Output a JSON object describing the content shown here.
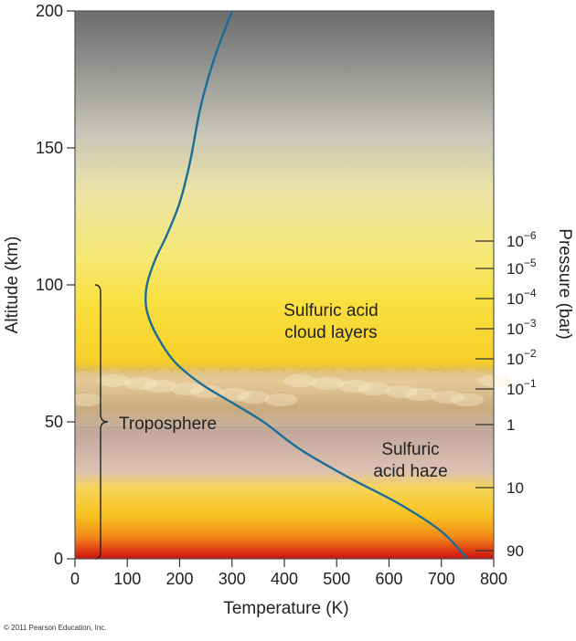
{
  "chart_data": {
    "type": "line",
    "xlabel": "Temperature (K)",
    "ylabel": "Altitude (km)",
    "y2label": "Pressure (bar)",
    "xlim": [
      0,
      800
    ],
    "ylim": [
      0,
      200
    ],
    "xticks": [
      "0",
      "100",
      "200",
      "300",
      "400",
      "500",
      "600",
      "700",
      "800"
    ],
    "yticks": [
      "0",
      "50",
      "100",
      "150",
      "200"
    ],
    "pressure_ticks": [
      {
        "altitude": 3,
        "base": "90",
        "exp": ""
      },
      {
        "altitude": 26,
        "base": "10",
        "exp": ""
      },
      {
        "altitude": 49,
        "base": "1",
        "exp": ""
      },
      {
        "altitude": 62,
        "base": "10",
        "exp": "−1"
      },
      {
        "altitude": 73,
        "base": "10",
        "exp": "−2"
      },
      {
        "altitude": 84,
        "base": "10",
        "exp": "−3"
      },
      {
        "altitude": 95,
        "base": "10",
        "exp": "−4"
      },
      {
        "altitude": 106,
        "base": "10",
        "exp": "−5"
      },
      {
        "altitude": 116,
        "base": "10",
        "exp": "−6"
      }
    ],
    "series": [
      {
        "color": "#1a6e96",
        "x": [
          750,
          700,
          620,
          520,
          430,
          360,
          300,
          240,
          190,
          155,
          138,
          135,
          140,
          155,
          175,
          200,
          220,
          240,
          265,
          290,
          300
        ],
        "y": [
          0,
          10,
          20,
          30,
          40,
          50,
          57,
          64,
          72,
          82,
          90,
          96,
          102,
          110,
          118,
          130,
          145,
          165,
          182,
          195,
          200
        ]
      }
    ],
    "annotations": [
      {
        "id": "cloud",
        "lines": [
          "Sulfuric acid",
          "cloud layers"
        ]
      },
      {
        "id": "haze",
        "lines": [
          "Sulfuric",
          "acid haze"
        ]
      },
      {
        "id": "troposphere",
        "lines": [
          "Troposphere"
        ]
      }
    ],
    "troposphere_range": [
      0,
      100
    ],
    "credit": "© 2011 Pearson Education, Inc."
  }
}
